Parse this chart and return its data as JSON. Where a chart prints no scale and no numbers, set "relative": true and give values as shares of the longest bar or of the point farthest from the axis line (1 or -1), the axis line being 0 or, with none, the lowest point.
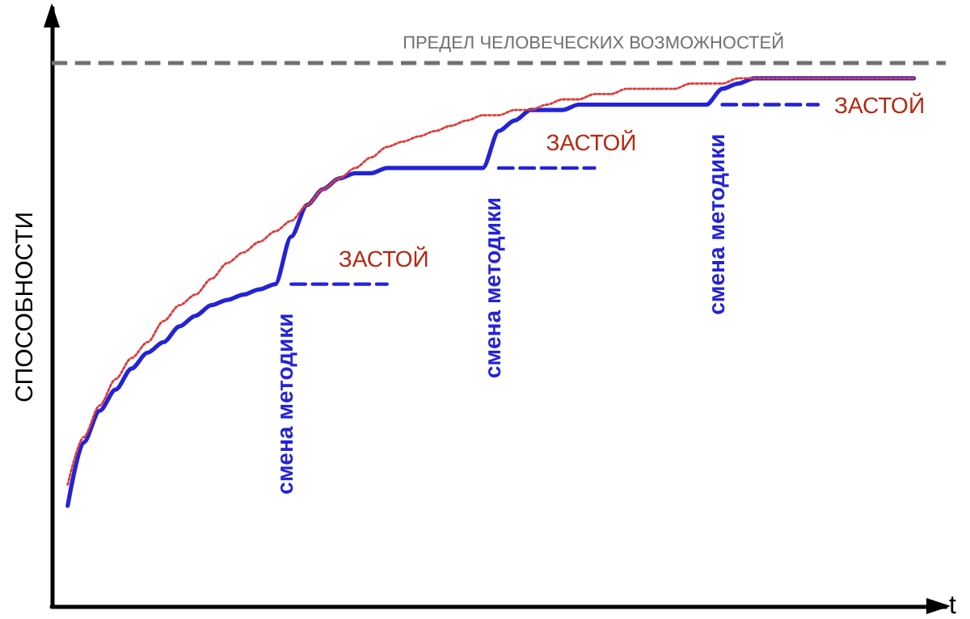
{
  "chart_data": {
    "type": "line",
    "relative": true,
    "xlabel": "t",
    "ylabel": "СПОСОБНОСТИ",
    "marker": "none",
    "categories": [
      null,
      null,
      null,
      null,
      null,
      null,
      null,
      null,
      null,
      null,
      null,
      null,
      null,
      null,
      null,
      null,
      null,
      null,
      null,
      null,
      null,
      null,
      null,
      null,
      null,
      null,
      null,
      null,
      null,
      null,
      null,
      null,
      null,
      null,
      null,
      null,
      null,
      null,
      null,
      null,
      null,
      null,
      null,
      null,
      null,
      null,
      null,
      null,
      null,
      null,
      null,
      null,
      null,
      null,
      null,
      null,
      null
    ],
    "series": [
      {
        "color": "#2323d6",
        "line_style": "solid",
        "values": [
          null,
          0.19,
          0.31,
          0.37,
          0.41,
          0.45,
          0.48,
          0.5,
          0.53,
          0.55,
          0.57,
          0.58,
          0.59,
          0.6,
          0.61,
          0.7,
          0.76,
          0.79,
          0.81,
          0.82,
          0.82,
          0.83,
          0.83,
          0.83,
          0.83,
          0.83,
          0.83,
          0.83,
          0.9,
          0.92,
          0.94,
          0.94,
          0.94,
          0.95,
          0.95,
          0.95,
          0.95,
          0.95,
          0.95,
          0.95,
          0.95,
          0.95,
          0.98,
          0.99,
          1.0,
          1.0,
          1.0,
          1.0,
          1.0,
          1.0,
          1.0,
          1.0,
          1.0,
          1.0,
          1.0,
          null,
          null
        ]
      },
      {
        "name": "ЗАСТОЙ",
        "color": "#2323d6",
        "line_style": "dashed",
        "values": [
          null,
          null,
          null,
          null,
          null,
          null,
          null,
          null,
          null,
          null,
          null,
          null,
          null,
          null,
          null,
          0.61,
          0.61,
          0.61,
          0.61,
          0.61,
          0.61,
          0.61,
          null,
          null,
          null,
          null,
          null,
          null,
          null,
          null,
          null,
          null,
          null,
          null,
          null,
          null,
          null,
          null,
          null,
          null,
          null,
          null,
          null,
          null,
          null,
          null,
          null,
          null,
          null,
          null,
          null,
          null,
          null,
          null,
          null,
          null,
          null
        ]
      },
      {
        "name": "ЗАСТОЙ",
        "color": "#2323d6",
        "line_style": "dashed",
        "values": [
          null,
          null,
          null,
          null,
          null,
          null,
          null,
          null,
          null,
          null,
          null,
          null,
          null,
          null,
          null,
          null,
          null,
          null,
          null,
          null,
          null,
          null,
          null,
          null,
          null,
          null,
          null,
          null,
          0.83,
          0.83,
          0.83,
          0.83,
          0.83,
          0.83,
          0.83,
          null,
          null,
          null,
          null,
          null,
          null,
          null,
          null,
          null,
          null,
          null,
          null,
          null,
          null,
          null,
          null,
          null,
          null,
          null,
          null,
          null,
          null
        ]
      },
      {
        "name": "ЗАСТОЙ",
        "color": "#2323d6",
        "line_style": "dashed",
        "values": [
          null,
          null,
          null,
          null,
          null,
          null,
          null,
          null,
          null,
          null,
          null,
          null,
          null,
          null,
          null,
          null,
          null,
          null,
          null,
          null,
          null,
          null,
          null,
          null,
          null,
          null,
          null,
          null,
          null,
          null,
          null,
          null,
          null,
          null,
          null,
          null,
          null,
          null,
          null,
          null,
          null,
          null,
          0.95,
          0.95,
          0.95,
          0.95,
          0.95,
          0.95,
          0.95,
          null,
          null,
          null,
          null,
          null,
          null,
          null,
          null
        ]
      },
      {
        "color": "#e03a3a",
        "line_style": "dotted",
        "values": [
          null,
          0.23,
          0.32,
          0.38,
          0.43,
          0.47,
          0.5,
          0.54,
          0.57,
          0.59,
          0.62,
          0.65,
          0.67,
          0.69,
          0.71,
          0.73,
          0.76,
          0.79,
          0.81,
          0.83,
          0.85,
          0.87,
          0.88,
          0.89,
          0.9,
          0.91,
          0.92,
          0.93,
          0.93,
          0.94,
          0.94,
          0.95,
          0.96,
          0.96,
          0.97,
          0.97,
          0.98,
          0.98,
          0.98,
          0.98,
          0.99,
          0.99,
          0.99,
          1.0,
          1.0,
          1.0,
          1.0,
          1.0,
          1.0,
          1.0,
          1.0,
          1.0,
          1.0,
          1.0,
          1.0,
          null,
          null
        ]
      }
    ],
    "ref_lines": [
      {
        "axis": "y",
        "value": 1.03,
        "label": "ПРЕДЕЛ ЧЕЛОВЕЧЕСКИХ ВОЗМОЖНОСТЕЙ",
        "color": "#707070",
        "line_style": "dashed"
      }
    ],
    "annotations": [
      "смена методики",
      "смена методики",
      "смена методики"
    ]
  }
}
